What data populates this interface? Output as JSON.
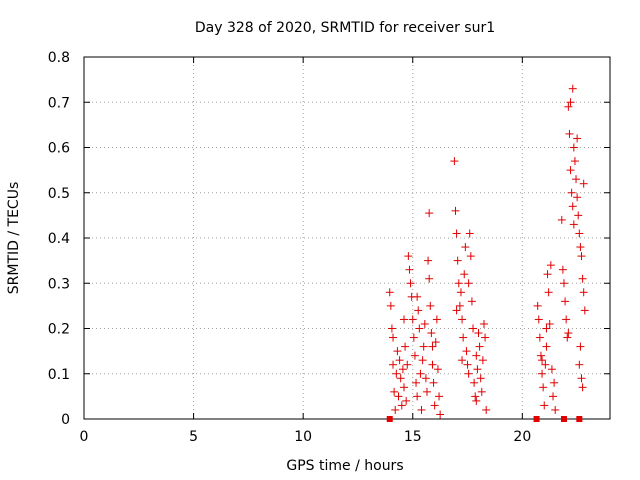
{
  "chart_data": {
    "type": "scatter",
    "title": "Day 328 of 2020, SRMTID for receiver sur1",
    "xlabel": "GPS time / hours",
    "ylabel": "SRMTID / TECUs",
    "xlim": [
      0,
      24
    ],
    "ylim": [
      0,
      0.8
    ],
    "xticks": [
      0,
      5,
      10,
      15,
      20
    ],
    "xtick_labels": [
      "0",
      "5",
      "10",
      "15",
      "20"
    ],
    "yticks": [
      0,
      0.1,
      0.2,
      0.3,
      0.4,
      0.5,
      0.6,
      0.7,
      0.8
    ],
    "ytick_labels": [
      "0",
      "0.1",
      "0.2",
      "0.3",
      "0.4",
      "0.5",
      "0.6",
      "0.7",
      "0.8"
    ],
    "grid": true,
    "series": [
      {
        "name": "sur1",
        "marker": "+",
        "color": "#e00000",
        "points": [
          [
            13.95,
            0.28
          ],
          [
            14.0,
            0.25
          ],
          [
            14.05,
            0.2
          ],
          [
            14.1,
            0.12
          ],
          [
            14.15,
            0.06
          ],
          [
            14.2,
            0.02
          ],
          [
            14.25,
            0.1
          ],
          [
            14.3,
            0.15
          ],
          [
            14.35,
            0.05
          ],
          [
            14.4,
            0.13
          ],
          [
            14.45,
            0.09
          ],
          [
            14.5,
            0.03
          ],
          [
            14.55,
            0.11
          ],
          [
            14.6,
            0.07
          ],
          [
            14.65,
            0.16
          ],
          [
            14.7,
            0.04
          ],
          [
            14.75,
            0.12
          ],
          [
            14.8,
            0.36
          ],
          [
            14.85,
            0.33
          ],
          [
            14.9,
            0.3
          ],
          [
            14.95,
            0.27
          ],
          [
            15.0,
            0.22
          ],
          [
            15.05,
            0.18
          ],
          [
            15.1,
            0.14
          ],
          [
            15.15,
            0.08
          ],
          [
            15.2,
            0.05
          ],
          [
            15.25,
            0.24
          ],
          [
            15.3,
            0.2
          ],
          [
            15.35,
            0.1
          ],
          [
            15.4,
            0.02
          ],
          [
            15.45,
            0.13
          ],
          [
            15.5,
            0.16
          ],
          [
            15.55,
            0.21
          ],
          [
            15.6,
            0.09
          ],
          [
            15.65,
            0.06
          ],
          [
            15.7,
            0.35
          ],
          [
            15.75,
            0.31
          ],
          [
            15.8,
            0.25
          ],
          [
            15.85,
            0.19
          ],
          [
            15.9,
            0.12
          ],
          [
            15.95,
            0.08
          ],
          [
            16.0,
            0.03
          ],
          [
            16.05,
            0.17
          ],
          [
            16.1,
            0.22
          ],
          [
            16.15,
            0.11
          ],
          [
            16.2,
            0.05
          ],
          [
            16.25,
            0.01
          ],
          [
            15.75,
            0.455
          ],
          [
            14.1,
            0.18
          ],
          [
            14.6,
            0.22
          ],
          [
            15.2,
            0.27
          ],
          [
            15.9,
            0.16
          ],
          [
            16.9,
            0.57
          ],
          [
            16.95,
            0.46
          ],
          [
            17.0,
            0.41
          ],
          [
            17.05,
            0.35
          ],
          [
            17.1,
            0.3
          ],
          [
            17.15,
            0.25
          ],
          [
            17.2,
            0.28
          ],
          [
            17.25,
            0.22
          ],
          [
            17.3,
            0.18
          ],
          [
            17.35,
            0.32
          ],
          [
            17.4,
            0.38
          ],
          [
            17.45,
            0.15
          ],
          [
            17.5,
            0.12
          ],
          [
            17.55,
            0.1
          ],
          [
            17.6,
            0.41
          ],
          [
            17.65,
            0.36
          ],
          [
            17.7,
            0.26
          ],
          [
            17.75,
            0.2
          ],
          [
            17.8,
            0.08
          ],
          [
            17.85,
            0.05
          ],
          [
            17.9,
            0.14
          ],
          [
            17.95,
            0.11
          ],
          [
            18.0,
            0.19
          ],
          [
            18.05,
            0.16
          ],
          [
            18.1,
            0.09
          ],
          [
            18.15,
            0.06
          ],
          [
            18.2,
            0.13
          ],
          [
            18.25,
            0.21
          ],
          [
            18.3,
            0.18
          ],
          [
            18.35,
            0.02
          ],
          [
            17.0,
            0.24
          ],
          [
            17.25,
            0.13
          ],
          [
            17.55,
            0.3
          ],
          [
            17.9,
            0.04
          ],
          [
            20.7,
            0.25
          ],
          [
            20.75,
            0.22
          ],
          [
            20.8,
            0.18
          ],
          [
            20.85,
            0.14
          ],
          [
            20.9,
            0.1
          ],
          [
            20.95,
            0.07
          ],
          [
            21.0,
            0.03
          ],
          [
            21.05,
            0.12
          ],
          [
            21.1,
            0.16
          ],
          [
            21.15,
            0.32
          ],
          [
            21.2,
            0.28
          ],
          [
            21.25,
            0.21
          ],
          [
            21.3,
            0.34
          ],
          [
            21.35,
            0.11
          ],
          [
            21.4,
            0.05
          ],
          [
            21.45,
            0.08
          ],
          [
            21.5,
            0.02
          ],
          [
            21.1,
            0.2
          ],
          [
            20.9,
            0.13
          ],
          [
            21.8,
            0.44
          ],
          [
            21.85,
            0.33
          ],
          [
            21.9,
            0.3
          ],
          [
            21.95,
            0.26
          ],
          [
            22.0,
            0.22
          ],
          [
            22.05,
            0.18
          ],
          [
            22.1,
            0.69
          ],
          [
            22.15,
            0.63
          ],
          [
            22.2,
            0.55
          ],
          [
            22.25,
            0.5
          ],
          [
            22.3,
            0.47
          ],
          [
            22.35,
            0.6
          ],
          [
            22.4,
            0.57
          ],
          [
            22.45,
            0.53
          ],
          [
            22.5,
            0.49
          ],
          [
            22.55,
            0.45
          ],
          [
            22.6,
            0.41
          ],
          [
            22.65,
            0.38
          ],
          [
            22.7,
            0.36
          ],
          [
            22.75,
            0.31
          ],
          [
            22.8,
            0.28
          ],
          [
            22.85,
            0.24
          ],
          [
            22.6,
            0.12
          ],
          [
            22.7,
            0.09
          ],
          [
            22.75,
            0.07
          ],
          [
            22.8,
            0.52
          ],
          [
            22.3,
            0.73
          ],
          [
            22.2,
            0.7
          ],
          [
            22.5,
            0.62
          ],
          [
            22.65,
            0.16
          ],
          [
            22.1,
            0.19
          ],
          [
            22.35,
            0.43
          ]
        ]
      }
    ],
    "markers_at_zero": [
      13.95,
      20.65,
      21.9,
      22.6
    ]
  }
}
